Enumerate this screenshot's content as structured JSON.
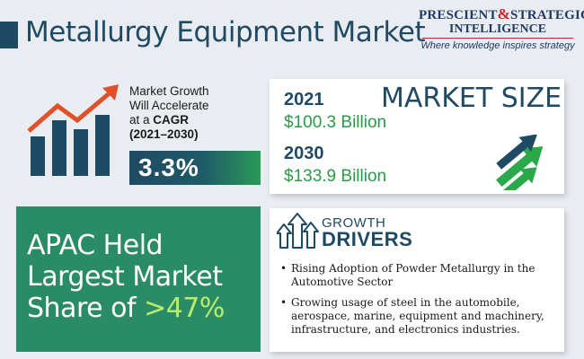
{
  "header": {
    "title": "Metallurgy Equipment Market"
  },
  "logo": {
    "line1_a": "PRESCIENT",
    "line1_amp": "&",
    "line1_b": "STRATEGIC",
    "line2": "INTELLIGENCE",
    "tagline": "Where knowledge inspires strategy"
  },
  "growth": {
    "line1": "Market Growth",
    "line2": "Will Accelerate",
    "line3_prefix": "at a ",
    "line3_bold": "CAGR",
    "line4": "(2021–2030)",
    "cagr": "3.3%",
    "icon": "bar-chart-rising-arrow-icon"
  },
  "market_size": {
    "title": "MARKET SIZE",
    "year1": "2021",
    "value1": "$100.3 Billion",
    "year2": "2030",
    "value2": "$133.9 Billion",
    "icon": "upward-arrows-icon"
  },
  "apac": {
    "line1": "APAC Held",
    "line2": "Largest Market",
    "line3_prefix": "Share of ",
    "highlight": ">47%"
  },
  "drivers": {
    "label_small": "GROWTH",
    "label_big": "DRIVERS",
    "icon": "growth-arrows-icon",
    "items": [
      "Rising Adoption of Powder Metallurgy in the Automotive Sector",
      "Growing usage of steel in the automobile, aerospace, marine, equipment and machinery, infrastructure, and electronics industries."
    ]
  },
  "colors": {
    "navy": "#1f4a63",
    "green": "#2a9a46",
    "teal_panel": "#2a8c66",
    "highlight": "#b8ec6a",
    "red_arrow": "#e0502a",
    "background": "#e9edf2"
  }
}
